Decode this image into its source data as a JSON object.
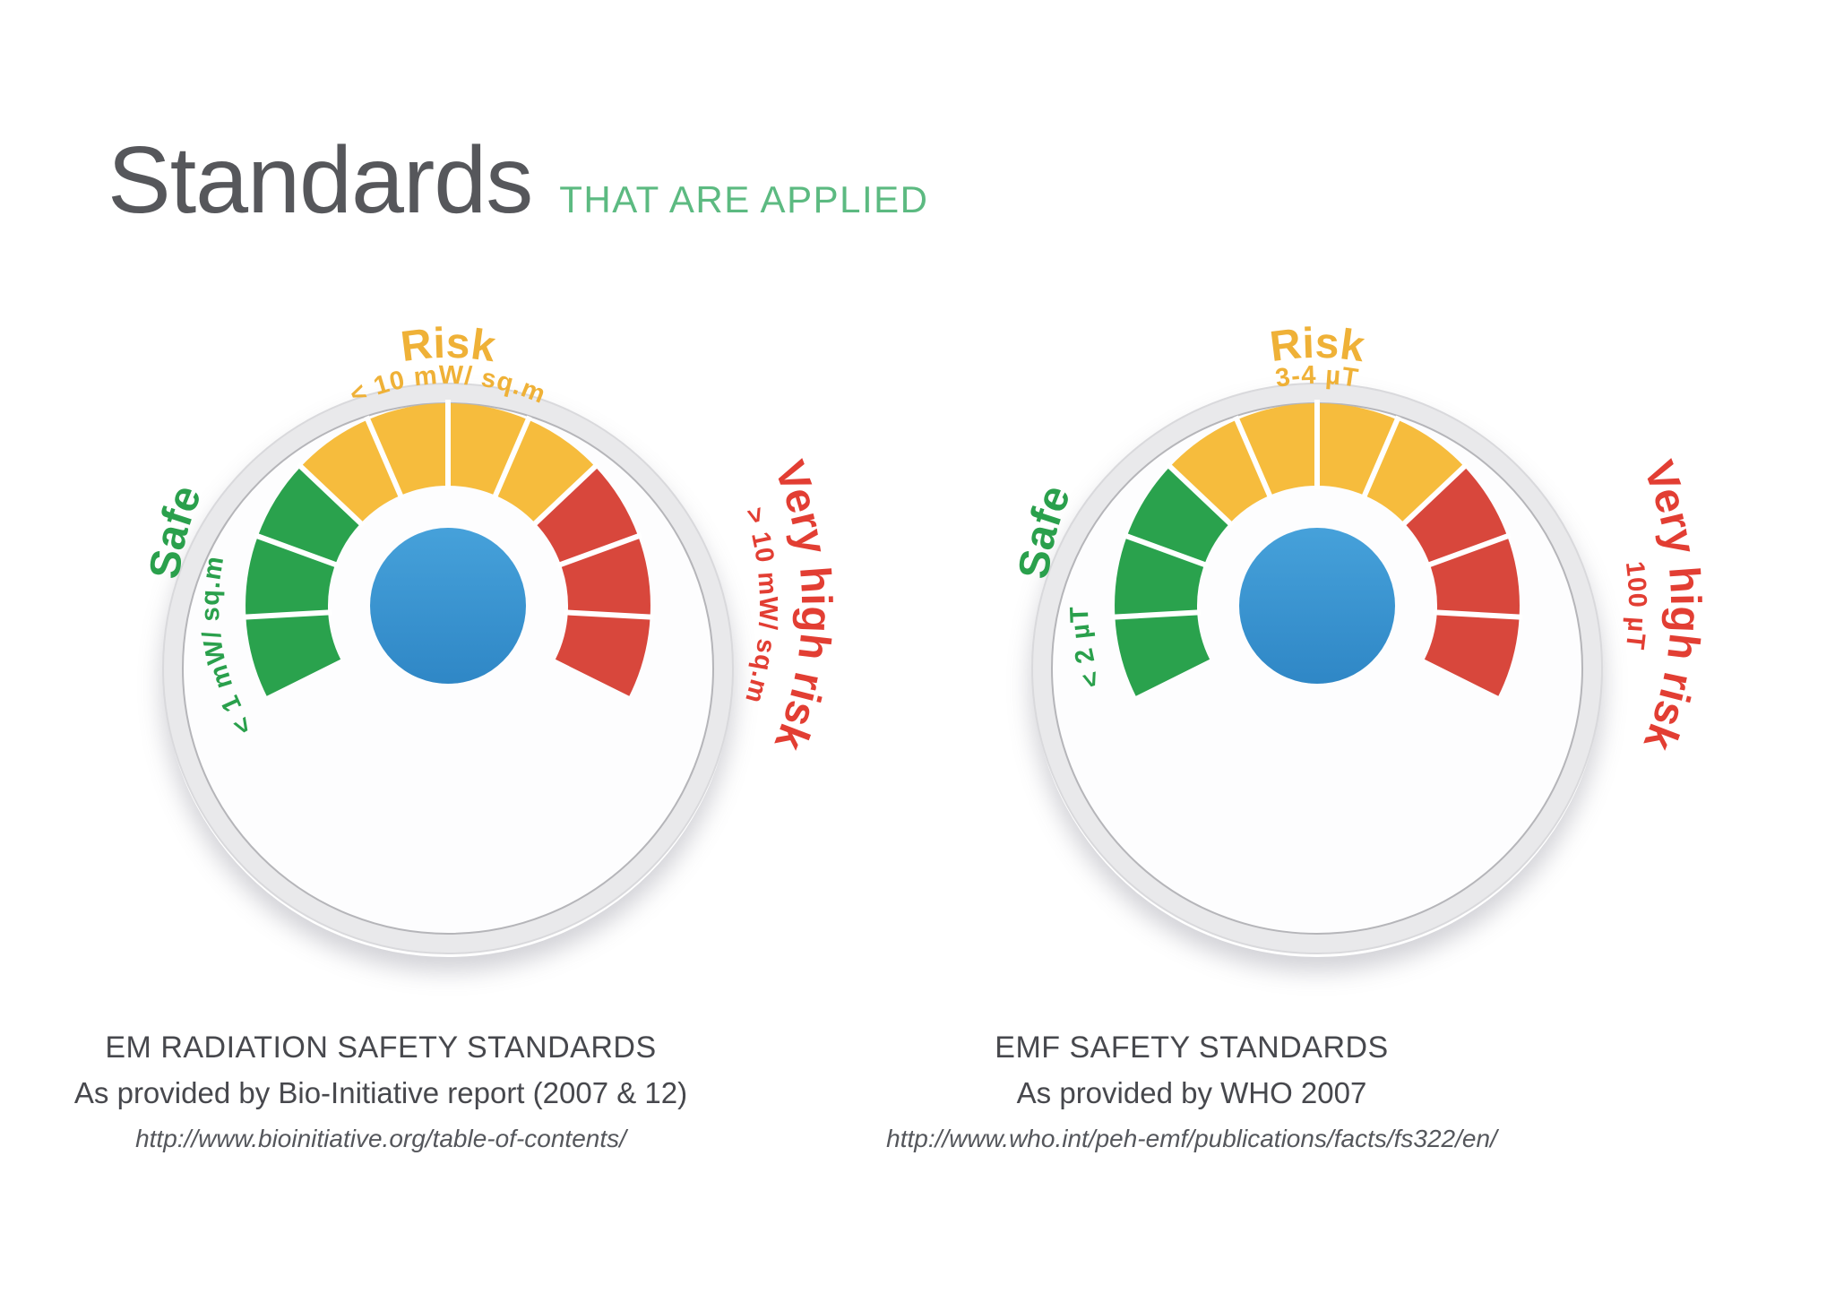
{
  "title": {
    "heading": "Standards",
    "subheading": "THAT ARE APPLIED"
  },
  "colors": {
    "accent_green": "#5cba81",
    "safe_green": "#2aa04c",
    "risk_yellow": "#f6bc3d",
    "high_risk_red": "#d8473c",
    "center_blue_top": "#46a1da",
    "center_blue_bottom": "#2f87c6",
    "dial_gray": "#e9e9eb",
    "title_gray": "#56575b"
  },
  "gauges": [
    {
      "name": "em-radiation-gauge",
      "zones": [
        {
          "label": "Safe",
          "value": "< 1 mW/ sq.m",
          "color": "#2aa24d",
          "segments": 3
        },
        {
          "label": "Risk",
          "value": "< 10 mW/ sq.m",
          "color": "#f6bc3d",
          "segments": 4
        },
        {
          "label": "Very high risk",
          "value": "> 10 mW/ sq.m",
          "color": "#d8473c",
          "segments": 3
        }
      ],
      "caption": {
        "title": "EM RADIATION SAFETY STANDARDS",
        "source": "As provided by Bio-Initiative report (2007 & 12)",
        "url": "http://www.bioinitiative.org/table-of-contents/"
      }
    },
    {
      "name": "emf-gauge",
      "zones": [
        {
          "label": "Safe",
          "value": "< 2 µT",
          "color": "#2aa24d",
          "segments": 3
        },
        {
          "label": "Risk",
          "value": "3-4 µT",
          "color": "#f6bc3d",
          "segments": 4
        },
        {
          "label": "Very high risk",
          "value": "100 µT",
          "color": "#d8473c",
          "segments": 3
        }
      ],
      "caption": {
        "title": "EMF SAFETY STANDARDS",
        "source": "As provided by WHO 2007",
        "url": "http://www.who.int/peh-emf/publications/facts/fs322/en/"
      }
    }
  ]
}
